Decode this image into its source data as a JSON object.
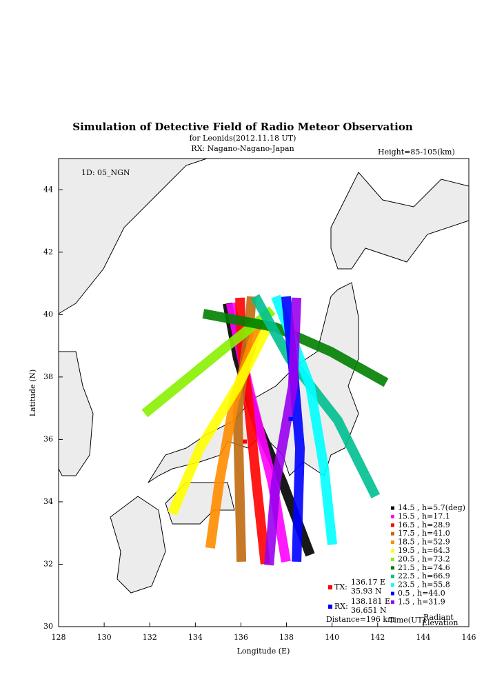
{
  "chart_data": {
    "type": "map-track",
    "title": "Simulation of Detective Field of Radio Meteor Observation",
    "subtitle": "for Leonids(2012.11.18 UT)",
    "receiver": "RX: Nagano-Nagano-Japan",
    "height_note": "Height=85-105(km)",
    "station_id": "1D: 05_NGN",
    "x_label": "Longitude (E)",
    "y_label": "Latitude (N)",
    "xlim": [
      128,
      146
    ],
    "ylim": [
      30,
      45
    ],
    "xticks": [
      128,
      130,
      132,
      134,
      136,
      138,
      140,
      142,
      144,
      146
    ],
    "yticks": [
      30,
      32,
      34,
      36,
      38,
      40,
      42,
      44
    ],
    "series": [
      {
        "name": "14.5 , h=5.7(deg)",
        "color": "#000000",
        "x": [
          135.41,
          135.86,
          136.77,
          137.83,
          139.04
        ],
        "values": [
          40.36,
          38.6,
          36.39,
          34.62,
          32.3
        ]
      },
      {
        "name": "15.5 , h=17.1",
        "color": "#ff00ff",
        "x": [
          135.56,
          135.86,
          136.32,
          137.38,
          137.98
        ],
        "values": [
          40.36,
          39.26,
          37.71,
          34.62,
          32.08
        ]
      },
      {
        "name": "16.5 , h=28.9",
        "color": "#ff0000",
        "x": [
          135.96,
          136.02,
          136.32,
          136.68,
          137.07
        ],
        "values": [
          40.54,
          39.04,
          37.27,
          34.62,
          32.01
        ]
      },
      {
        "name": "17.5 , h=41.0",
        "color": "#c06a10",
        "x": [
          136.47,
          136.38,
          135.86,
          136.02
        ],
        "values": [
          40.58,
          39.7,
          36.83,
          32.08
        ]
      },
      {
        "name": "18.5 , h=52.9",
        "color": "#ff8c00",
        "x": [
          136.77,
          135.71,
          135.05,
          134.65
        ],
        "values": [
          39.7,
          37.27,
          34.62,
          32.52
        ]
      },
      {
        "name": "19.5 , h=64.3",
        "color": "#ffff00",
        "x": [
          137.23,
          135.86,
          134.2,
          132.99
        ],
        "values": [
          39.7,
          37.71,
          35.72,
          33.62
        ]
      },
      {
        "name": "20.5 , h=73.2",
        "color": "#88f000",
        "x": [
          137.38,
          135.11,
          131.78
        ],
        "values": [
          40.14,
          38.82,
          36.83
        ]
      },
      {
        "name": "21.5 , h=74.6",
        "color": "#008000",
        "x": [
          134.35,
          137.53,
          139.95,
          142.37
        ],
        "values": [
          40.03,
          39.59,
          38.81,
          37.82
        ]
      },
      {
        "name": "22.5 , h=66.9",
        "color": "#00c090",
        "x": [
          136.62,
          138.13,
          140.25,
          141.91
        ],
        "values": [
          40.58,
          38.59,
          36.61,
          34.18
        ]
      },
      {
        "name": "23.5 , h=55.8",
        "color": "#00ffff",
        "x": [
          137.53,
          139.04,
          139.65,
          140.01
        ],
        "values": [
          40.58,
          37.71,
          35.06,
          32.63
        ]
      },
      {
        "name": "0.5 , h=44.0",
        "color": "#0000ff",
        "x": [
          137.98,
          138.28,
          138.59,
          138.44
        ],
        "values": [
          40.58,
          38.37,
          35.72,
          32.08
        ]
      },
      {
        "name": "1.5 , h=31.9",
        "color": "#9900ee",
        "x": [
          138.44,
          138.28,
          137.53,
          137.23
        ],
        "values": [
          40.54,
          37.71,
          34.62,
          31.97
        ]
      }
    ],
    "stations": [
      {
        "name": "TX:",
        "color": "#ff0000",
        "lon": 136.17,
        "lat": 35.93,
        "lon_label": "136.17 E",
        "lat_label": "35.93 N"
      },
      {
        "name": "RX:",
        "color": "#0000ff",
        "lon": 138.181,
        "lat": 36.651,
        "lon_label": "138.181 E",
        "lat_label": "36.651 N"
      }
    ],
    "distance": "Distance=196 km",
    "time_label": "Time(UT)",
    "elevation_label": [
      "Radiant",
      "Elevation"
    ]
  }
}
